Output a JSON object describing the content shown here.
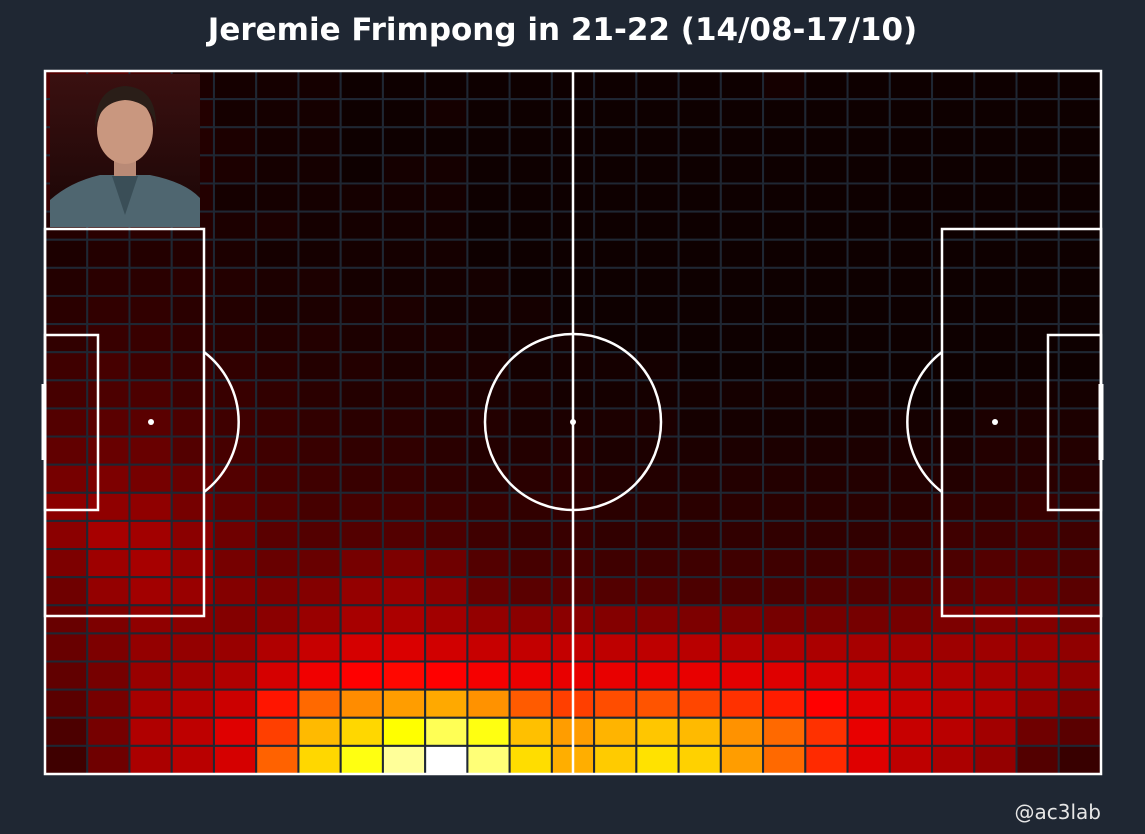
{
  "title": "Jeremie Frimpong in 21-22 (14/08-17/10)",
  "credit": "@ac3lab",
  "colors": {
    "background": "#1f2733",
    "grid_lines": "#1f2733",
    "pitch_lines": "#ffffff",
    "colormap": [
      "#000000",
      "#8b0000",
      "#ff0000",
      "#ff8c00",
      "#ffff00",
      "#ffffff"
    ]
  },
  "chart_data": {
    "type": "heatmap",
    "description_visible": "Player touch heatmap over a horizontal football pitch",
    "grid": {
      "columns": 25,
      "rows": 25
    },
    "color_scale": "black-red-yellow-white (hot)",
    "inset_photo": "coach-photo",
    "values": [
      [
        0.12,
        0.13,
        0.1,
        0.04,
        0.03,
        0.03,
        0.03,
        0.02,
        0.02,
        0.02,
        0.02,
        0.02,
        0.02,
        0.02,
        0.02,
        0.02,
        0.02,
        0.03,
        0.02,
        0.02,
        0.02,
        0.02,
        0.02,
        0.02,
        0.02
      ],
      [
        0.1,
        0.12,
        0.1,
        0.05,
        0.03,
        0.03,
        0.03,
        0.02,
        0.02,
        0.03,
        0.02,
        0.02,
        0.02,
        0.02,
        0.02,
        0.02,
        0.02,
        0.02,
        0.02,
        0.02,
        0.02,
        0.02,
        0.02,
        0.02,
        0.02
      ],
      [
        0.1,
        0.12,
        0.1,
        0.05,
        0.04,
        0.03,
        0.03,
        0.02,
        0.02,
        0.02,
        0.02,
        0.02,
        0.02,
        0.02,
        0.02,
        0.02,
        0.02,
        0.02,
        0.02,
        0.02,
        0.02,
        0.02,
        0.02,
        0.02,
        0.02
      ],
      [
        0.09,
        0.1,
        0.09,
        0.05,
        0.04,
        0.03,
        0.03,
        0.02,
        0.03,
        0.03,
        0.02,
        0.02,
        0.02,
        0.02,
        0.02,
        0.02,
        0.02,
        0.02,
        0.02,
        0.02,
        0.02,
        0.02,
        0.02,
        0.02,
        0.02
      ],
      [
        0.08,
        0.09,
        0.08,
        0.05,
        0.03,
        0.03,
        0.03,
        0.03,
        0.03,
        0.03,
        0.02,
        0.02,
        0.02,
        0.02,
        0.02,
        0.02,
        0.02,
        0.02,
        0.02,
        0.02,
        0.02,
        0.02,
        0.02,
        0.02,
        0.02
      ],
      [
        0.05,
        0.06,
        0.06,
        0.05,
        0.04,
        0.04,
        0.03,
        0.03,
        0.03,
        0.03,
        0.02,
        0.02,
        0.02,
        0.02,
        0.02,
        0.02,
        0.02,
        0.02,
        0.02,
        0.02,
        0.02,
        0.02,
        0.02,
        0.02,
        0.02
      ],
      [
        0.04,
        0.05,
        0.05,
        0.05,
        0.04,
        0.03,
        0.03,
        0.03,
        0.03,
        0.03,
        0.02,
        0.02,
        0.02,
        0.02,
        0.02,
        0.02,
        0.02,
        0.02,
        0.02,
        0.02,
        0.02,
        0.02,
        0.02,
        0.02,
        0.02
      ],
      [
        0.05,
        0.06,
        0.06,
        0.06,
        0.05,
        0.04,
        0.04,
        0.03,
        0.03,
        0.03,
        0.03,
        0.02,
        0.02,
        0.02,
        0.02,
        0.02,
        0.02,
        0.02,
        0.02,
        0.02,
        0.02,
        0.02,
        0.02,
        0.02,
        0.02
      ],
      [
        0.06,
        0.07,
        0.07,
        0.06,
        0.05,
        0.04,
        0.04,
        0.04,
        0.04,
        0.03,
        0.03,
        0.03,
        0.02,
        0.02,
        0.02,
        0.02,
        0.02,
        0.02,
        0.02,
        0.02,
        0.02,
        0.02,
        0.02,
        0.02,
        0.02
      ],
      [
        0.07,
        0.08,
        0.08,
        0.07,
        0.06,
        0.05,
        0.05,
        0.04,
        0.04,
        0.04,
        0.03,
        0.03,
        0.03,
        0.02,
        0.02,
        0.02,
        0.02,
        0.02,
        0.02,
        0.02,
        0.02,
        0.02,
        0.02,
        0.02,
        0.02
      ],
      [
        0.09,
        0.1,
        0.09,
        0.08,
        0.07,
        0.06,
        0.05,
        0.05,
        0.04,
        0.04,
        0.04,
        0.03,
        0.03,
        0.03,
        0.03,
        0.02,
        0.02,
        0.02,
        0.02,
        0.02,
        0.02,
        0.02,
        0.02,
        0.02,
        0.02
      ],
      [
        0.1,
        0.11,
        0.11,
        0.09,
        0.08,
        0.07,
        0.06,
        0.05,
        0.05,
        0.05,
        0.04,
        0.04,
        0.03,
        0.03,
        0.03,
        0.03,
        0.03,
        0.03,
        0.03,
        0.03,
        0.02,
        0.02,
        0.03,
        0.03,
        0.03
      ],
      [
        0.12,
        0.13,
        0.13,
        0.11,
        0.09,
        0.08,
        0.07,
        0.06,
        0.06,
        0.05,
        0.05,
        0.04,
        0.04,
        0.04,
        0.04,
        0.03,
        0.03,
        0.03,
        0.03,
        0.03,
        0.03,
        0.03,
        0.04,
        0.04,
        0.04
      ],
      [
        0.14,
        0.15,
        0.15,
        0.12,
        0.1,
        0.09,
        0.08,
        0.07,
        0.07,
        0.06,
        0.05,
        0.05,
        0.05,
        0.04,
        0.04,
        0.04,
        0.04,
        0.04,
        0.04,
        0.04,
        0.04,
        0.04,
        0.05,
        0.05,
        0.05
      ],
      [
        0.17,
        0.18,
        0.17,
        0.15,
        0.12,
        0.1,
        0.09,
        0.08,
        0.08,
        0.07,
        0.06,
        0.06,
        0.06,
        0.05,
        0.05,
        0.05,
        0.05,
        0.05,
        0.05,
        0.05,
        0.05,
        0.05,
        0.06,
        0.06,
        0.06
      ],
      [
        0.2,
        0.21,
        0.21,
        0.17,
        0.14,
        0.12,
        0.1,
        0.1,
        0.1,
        0.09,
        0.08,
        0.07,
        0.07,
        0.06,
        0.06,
        0.06,
        0.06,
        0.06,
        0.06,
        0.06,
        0.06,
        0.07,
        0.07,
        0.08,
        0.07
      ],
      [
        0.2,
        0.26,
        0.25,
        0.2,
        0.16,
        0.13,
        0.12,
        0.12,
        0.12,
        0.11,
        0.09,
        0.08,
        0.08,
        0.07,
        0.07,
        0.07,
        0.07,
        0.07,
        0.07,
        0.07,
        0.08,
        0.09,
        0.09,
        0.1,
        0.09
      ],
      [
        0.18,
        0.24,
        0.26,
        0.22,
        0.17,
        0.15,
        0.15,
        0.17,
        0.18,
        0.16,
        0.12,
        0.1,
        0.1,
        0.09,
        0.09,
        0.09,
        0.09,
        0.09,
        0.09,
        0.1,
        0.1,
        0.11,
        0.12,
        0.12,
        0.11
      ],
      [
        0.16,
        0.22,
        0.25,
        0.23,
        0.19,
        0.18,
        0.19,
        0.22,
        0.23,
        0.2,
        0.15,
        0.13,
        0.13,
        0.12,
        0.12,
        0.11,
        0.11,
        0.11,
        0.12,
        0.12,
        0.13,
        0.14,
        0.15,
        0.15,
        0.13
      ],
      [
        0.15,
        0.18,
        0.21,
        0.2,
        0.19,
        0.2,
        0.23,
        0.26,
        0.27,
        0.25,
        0.22,
        0.2,
        0.2,
        0.19,
        0.19,
        0.18,
        0.18,
        0.17,
        0.17,
        0.17,
        0.17,
        0.18,
        0.19,
        0.19,
        0.17
      ],
      [
        0.15,
        0.18,
        0.22,
        0.22,
        0.23,
        0.28,
        0.33,
        0.36,
        0.37,
        0.35,
        0.33,
        0.32,
        0.32,
        0.31,
        0.31,
        0.3,
        0.29,
        0.28,
        0.27,
        0.26,
        0.25,
        0.24,
        0.24,
        0.23,
        0.21
      ],
      [
        0.14,
        0.17,
        0.23,
        0.25,
        0.28,
        0.36,
        0.42,
        0.45,
        0.46,
        0.45,
        0.43,
        0.41,
        0.4,
        0.4,
        0.4,
        0.4,
        0.39,
        0.38,
        0.36,
        0.33,
        0.3,
        0.28,
        0.26,
        0.24,
        0.21
      ],
      [
        0.13,
        0.17,
        0.26,
        0.29,
        0.34,
        0.48,
        0.6,
        0.65,
        0.68,
        0.7,
        0.66,
        0.58,
        0.54,
        0.56,
        0.57,
        0.55,
        0.52,
        0.49,
        0.45,
        0.38,
        0.33,
        0.3,
        0.28,
        0.22,
        0.18
      ],
      [
        0.11,
        0.17,
        0.28,
        0.31,
        0.38,
        0.54,
        0.73,
        0.78,
        0.85,
        0.9,
        0.86,
        0.74,
        0.68,
        0.72,
        0.75,
        0.73,
        0.66,
        0.6,
        0.52,
        0.4,
        0.33,
        0.3,
        0.25,
        0.16,
        0.13
      ],
      [
        0.09,
        0.16,
        0.27,
        0.3,
        0.36,
        0.59,
        0.78,
        0.86,
        0.94,
        1.0,
        0.92,
        0.79,
        0.71,
        0.76,
        0.8,
        0.77,
        0.68,
        0.6,
        0.51,
        0.38,
        0.31,
        0.27,
        0.22,
        0.12,
        0.08
      ]
    ]
  }
}
